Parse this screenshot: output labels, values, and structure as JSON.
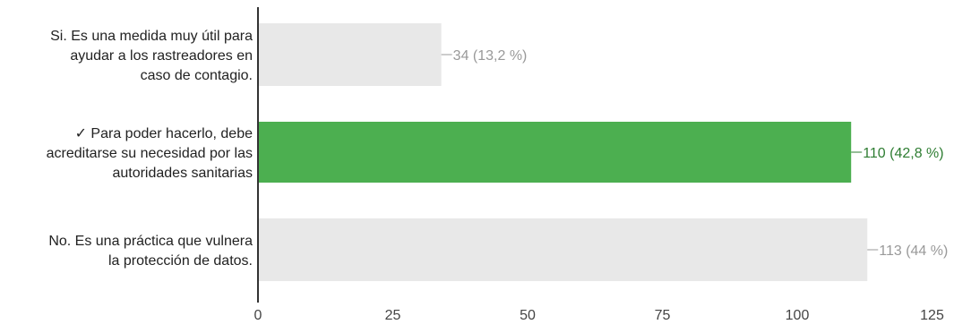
{
  "chart_data": {
    "type": "bar",
    "orientation": "horizontal",
    "categories": [
      [
        "Si. Es una medida muy útil para",
        "ayudar a los rastreadores en",
        "caso de contagio."
      ],
      [
        "✓ Para poder hacerlo, debe",
        "acreditarse su necesidad por las",
        "autoridades sanitarias"
      ],
      [
        "No. Es una práctica que vulnera",
        "la protección de datos."
      ]
    ],
    "values": [
      34,
      110,
      113
    ],
    "value_labels": [
      "34 (13,2 %)",
      "110 (42,8 %)",
      "113 (44 %)"
    ],
    "highlighted_index": 1,
    "colors": {
      "bar": "#e8e8e8",
      "highlight_bar": "#4caf50",
      "label": "#999999",
      "highlight_label": "#2e7d32",
      "axis": "#333333"
    },
    "xlim": [
      0,
      125
    ],
    "xticks": [
      0,
      25,
      50,
      75,
      100,
      125
    ],
    "grid": false,
    "title": "",
    "xlabel": "",
    "ylabel": ""
  }
}
